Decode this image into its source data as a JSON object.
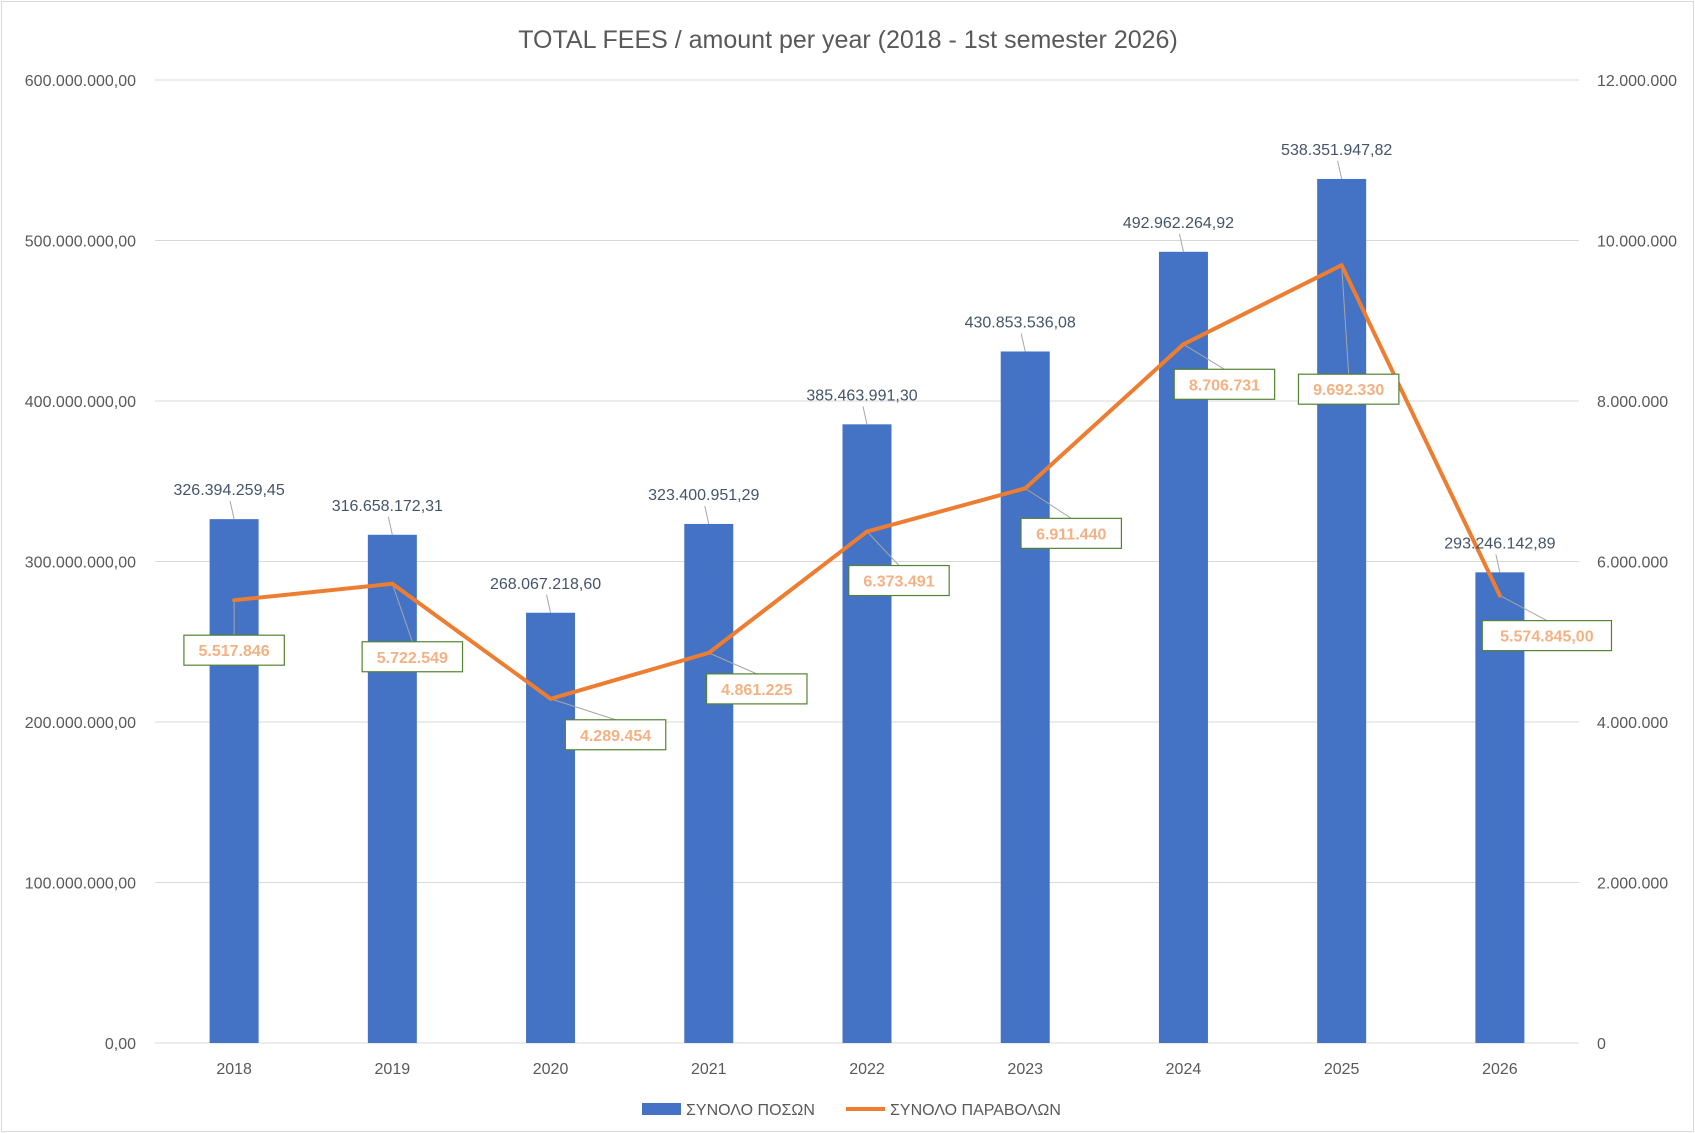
{
  "chart_data": {
    "type": "bar",
    "title": "TOTAL FEES / amount per year (2018 - 1st semester 2026)",
    "categories": [
      "2018",
      "2019",
      "2020",
      "2021",
      "2022",
      "2023",
      "2024",
      "2025",
      "2026"
    ],
    "series": [
      {
        "name": "ΣΥΝΟΛΟ ΠΟΣΩΝ",
        "type": "bar",
        "axis": "left",
        "color": "#4472c4",
        "values": [
          326394259.45,
          316658172.31,
          268067218.6,
          323400951.29,
          385463991.3,
          430853536.08,
          492962264.92,
          538351947.82,
          293246142.89
        ],
        "labels": [
          "326.394.259,45",
          "316.658.172,31",
          "268.067.218,60",
          "323.400.951,29",
          "385.463.991,30",
          "430.853.536,08",
          "492.962.264,92",
          "538.351.947,82",
          "293.246.142,89"
        ]
      },
      {
        "name": "ΣΥΝΟΛΟ ΠΑΡΑΒΟΛΩΝ",
        "type": "line",
        "axis": "right",
        "color": "#ed7d31",
        "values": [
          5517846,
          5722549,
          4289454,
          4861225,
          6373491,
          6911440,
          8706731,
          9692330,
          5574845
        ],
        "labels": [
          "5.517.846",
          "5.722.549",
          "4.289.454",
          "4.861.225",
          "6.373.491",
          "6.911.440",
          "8.706.731",
          "9.692.330",
          "5.574.845,00"
        ]
      }
    ],
    "y_left": {
      "ylim": [
        0,
        600000000
      ],
      "ticks": [
        "0,00",
        "100.000.000,00",
        "200.000.000,00",
        "300.000.000,00",
        "400.000.000,00",
        "500.000.000,00",
        "600.000.000,00"
      ]
    },
    "y_right": {
      "ylim": [
        0,
        12000000
      ],
      "ticks": [
        "0",
        "2.000.000",
        "4.000.000",
        "6.000.000",
        "8.000.000",
        "10.000.000",
        "12.000.000"
      ]
    },
    "grid": true,
    "legend": "bottom",
    "colors": {
      "bar": "#4472c4",
      "line": "#ed7d31",
      "line_label_text": "#f4b183",
      "line_label_border": "#548235",
      "gridline": "#d9d9d9"
    }
  }
}
